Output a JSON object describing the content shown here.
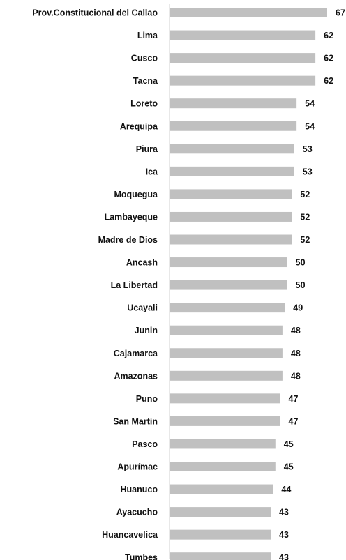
{
  "chart_data": {
    "type": "bar",
    "orientation": "horizontal",
    "title": "",
    "xlabel": "",
    "ylabel": "",
    "categories": [
      "Prov.Constitucional del Callao",
      "Lima",
      "Cusco",
      "Tacna",
      "Loreto",
      "Arequipa",
      "Piura",
      "Ica",
      "Moquegua",
      "Lambayeque",
      "Madre de Dios",
      "Ancash",
      "La Libertad",
      "Ucayali",
      "Junin",
      "Cajamarca",
      "Amazonas",
      "Puno",
      "San Martin",
      "Pasco",
      "Apurímac",
      "Huanuco",
      "Ayacucho",
      "Huancavelica",
      "Tumbes"
    ],
    "values": [
      67,
      62,
      62,
      62,
      54,
      54,
      53,
      53,
      52,
      52,
      52,
      50,
      50,
      49,
      48,
      48,
      48,
      47,
      47,
      45,
      45,
      44,
      43,
      43,
      43
    ],
    "xlim": [
      0,
      67
    ],
    "bar_color": "#c0c0c0",
    "grid": false,
    "legend": "none",
    "data_labels": true
  }
}
